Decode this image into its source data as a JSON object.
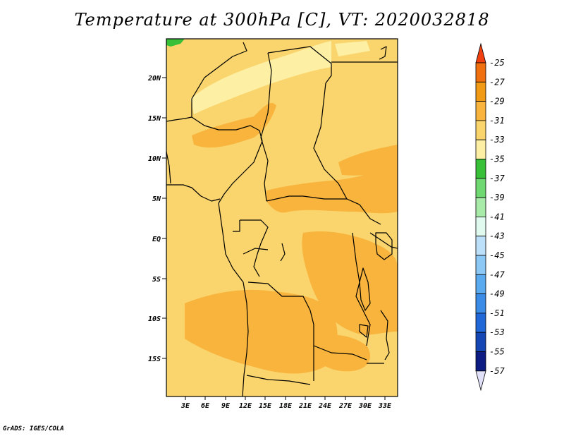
{
  "title": "Temperature at 300hPa [C], VT: 2020032818",
  "credit": "GrADS: IGES/COLA",
  "lat_labels": [
    "20N",
    "15N",
    "10N",
    "5N",
    "EQ",
    "5S",
    "10S",
    "15S"
  ],
  "lon_labels": [
    "3E",
    "6E",
    "9E",
    "12E",
    "15E",
    "18E",
    "21E",
    "24E",
    "27E",
    "30E",
    "33E"
  ],
  "colorbar": {
    "labels": [
      "-25",
      "-27",
      "-29",
      "-31",
      "-33",
      "-35",
      "-37",
      "-39",
      "-41",
      "-43",
      "-45",
      "-47",
      "-49",
      "-51",
      "-53",
      "-55",
      "-57"
    ],
    "colors": [
      "#f04010",
      "#f07010",
      "#f09a16",
      "#f8b43c",
      "#fad46c",
      "#fdf0a4",
      "#38c038",
      "#70d870",
      "#a8eaa8",
      "#e0faf0",
      "#bde0fa",
      "#8cc8f5",
      "#5aaaf0",
      "#3a8ce6",
      "#2068d8",
      "#1446b4",
      "#0c1c82",
      "#e0e0f8"
    ]
  },
  "palette": {
    "temp_-33_-31": "#fad46c",
    "temp_-35_-33": "#fdf0a4",
    "temp_-31_-29": "#f8b43c",
    "temp_-37_-35": "#38c038",
    "border_color": "#000000"
  }
}
